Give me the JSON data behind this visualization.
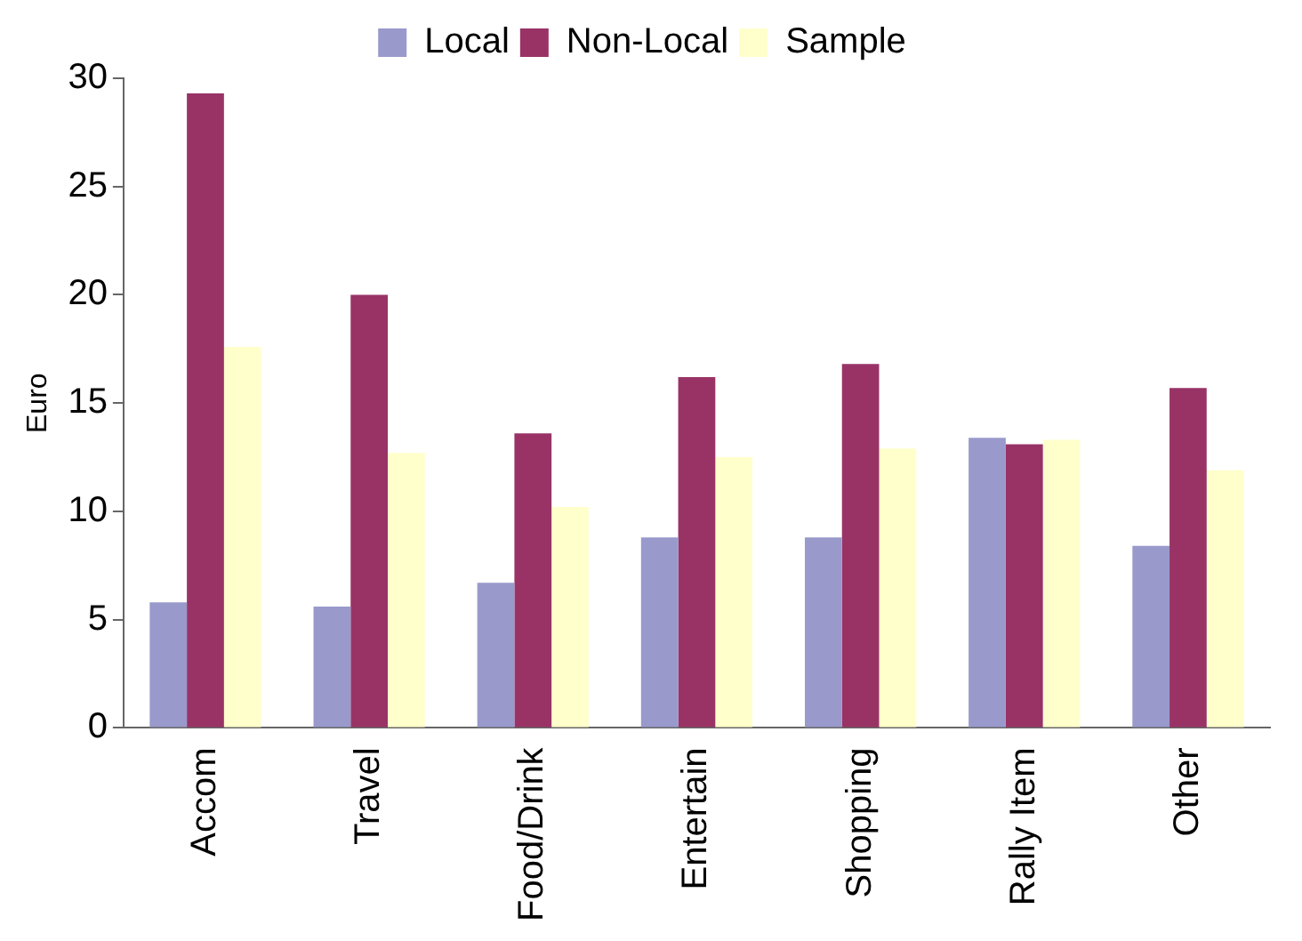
{
  "chart_data": {
    "type": "bar",
    "ylabel": "Euro",
    "categories": [
      "Accom",
      "Travel",
      "Food/Drink",
      "Entertain",
      "Shopping",
      "Rally Item",
      "Other"
    ],
    "series": [
      {
        "name": "Local",
        "color": "#9999cc",
        "values": [
          5.8,
          5.6,
          6.7,
          8.8,
          8.8,
          13.4,
          8.4
        ]
      },
      {
        "name": "Non-Local",
        "color": "#993366",
        "values": [
          29.3,
          20.0,
          13.6,
          16.2,
          16.8,
          13.1,
          15.7
        ]
      },
      {
        "name": "Sample",
        "color": "#ffffcc",
        "values": [
          17.6,
          12.7,
          10.2,
          12.5,
          12.9,
          13.3,
          11.9
        ]
      }
    ],
    "ylim": [
      0,
      30
    ],
    "yticks": [
      0,
      5,
      10,
      15,
      20,
      25,
      30
    ],
    "grid": false,
    "legend": "top"
  }
}
